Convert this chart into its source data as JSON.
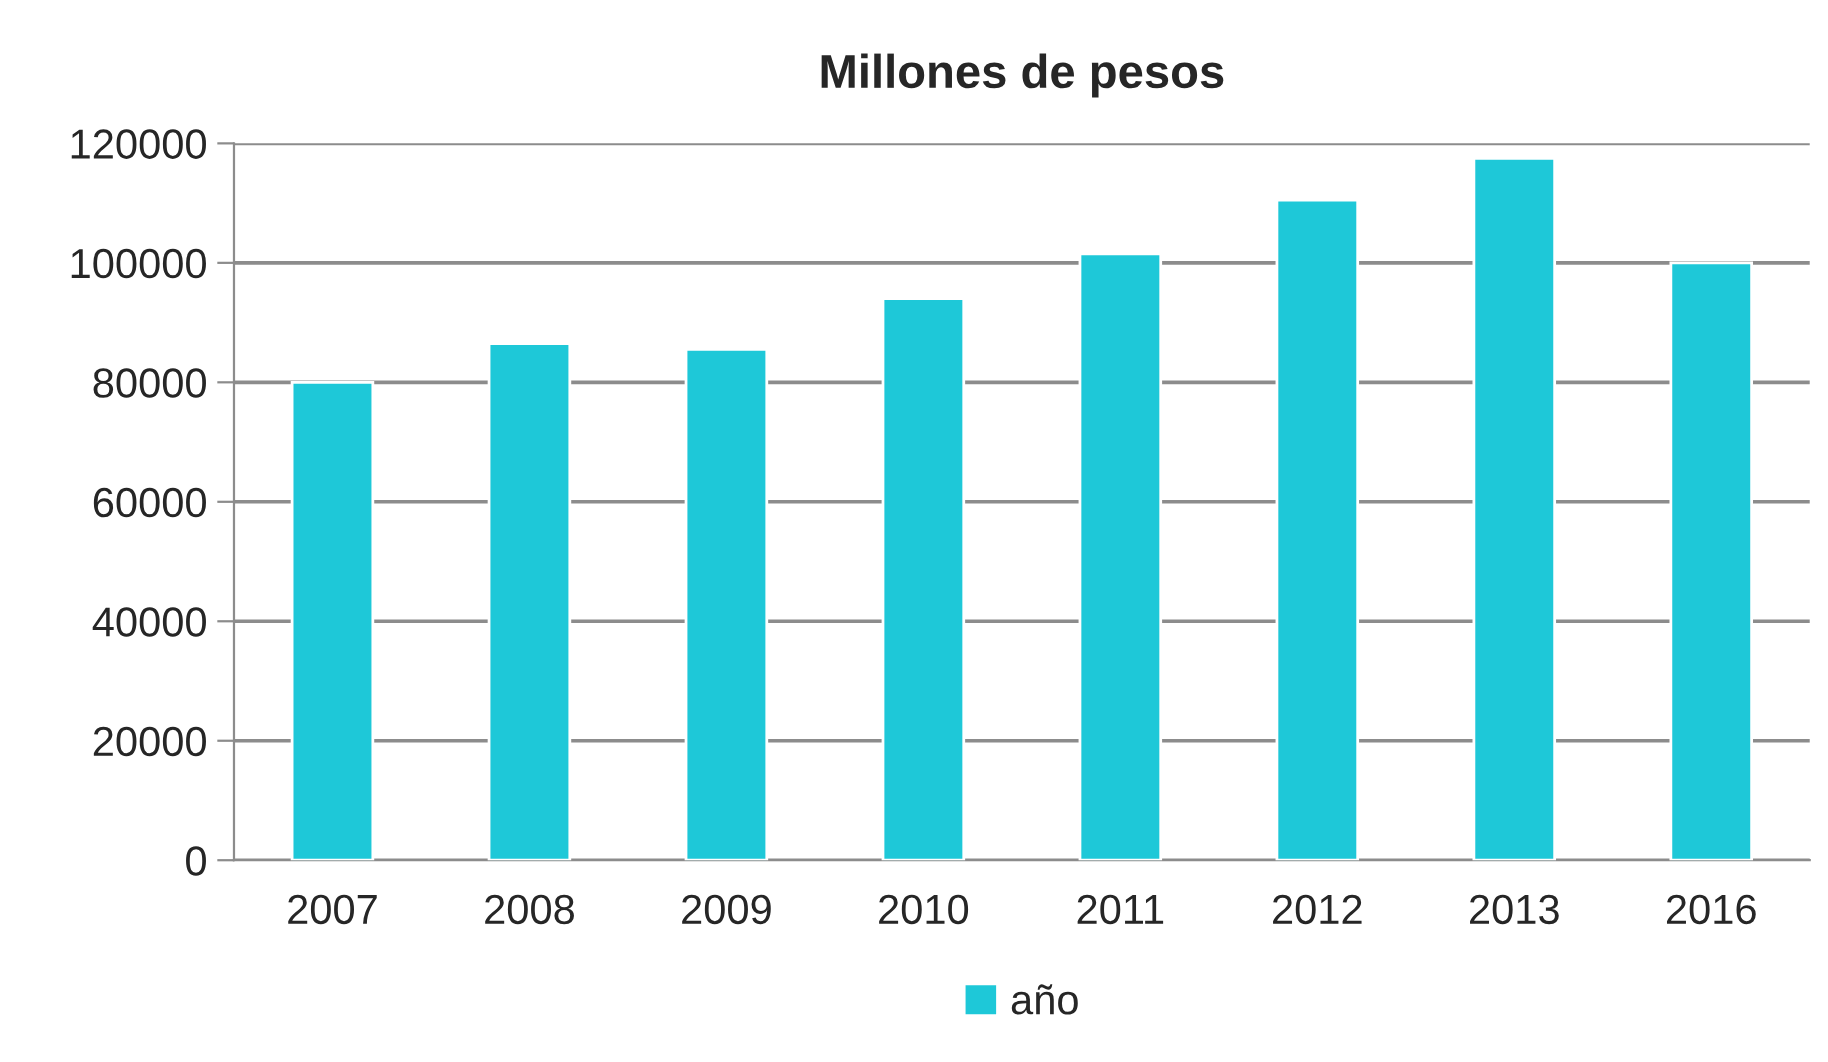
{
  "chart_data": {
    "type": "bar",
    "title": "Millones de pesos",
    "categories": [
      "2007",
      "2008",
      "2009",
      "2010",
      "2011",
      "2012",
      "2013",
      "2016"
    ],
    "series": [
      {
        "name": "año",
        "color": "#1ec8d8",
        "values": [
          80000,
          86500,
          85500,
          94000,
          101500,
          110500,
          117500,
          100000
        ]
      }
    ],
    "ylim": [
      0,
      120000
    ],
    "yticks": [
      0,
      20000,
      40000,
      60000,
      80000,
      100000,
      120000
    ],
    "grid": "y",
    "legend": "bottom"
  }
}
